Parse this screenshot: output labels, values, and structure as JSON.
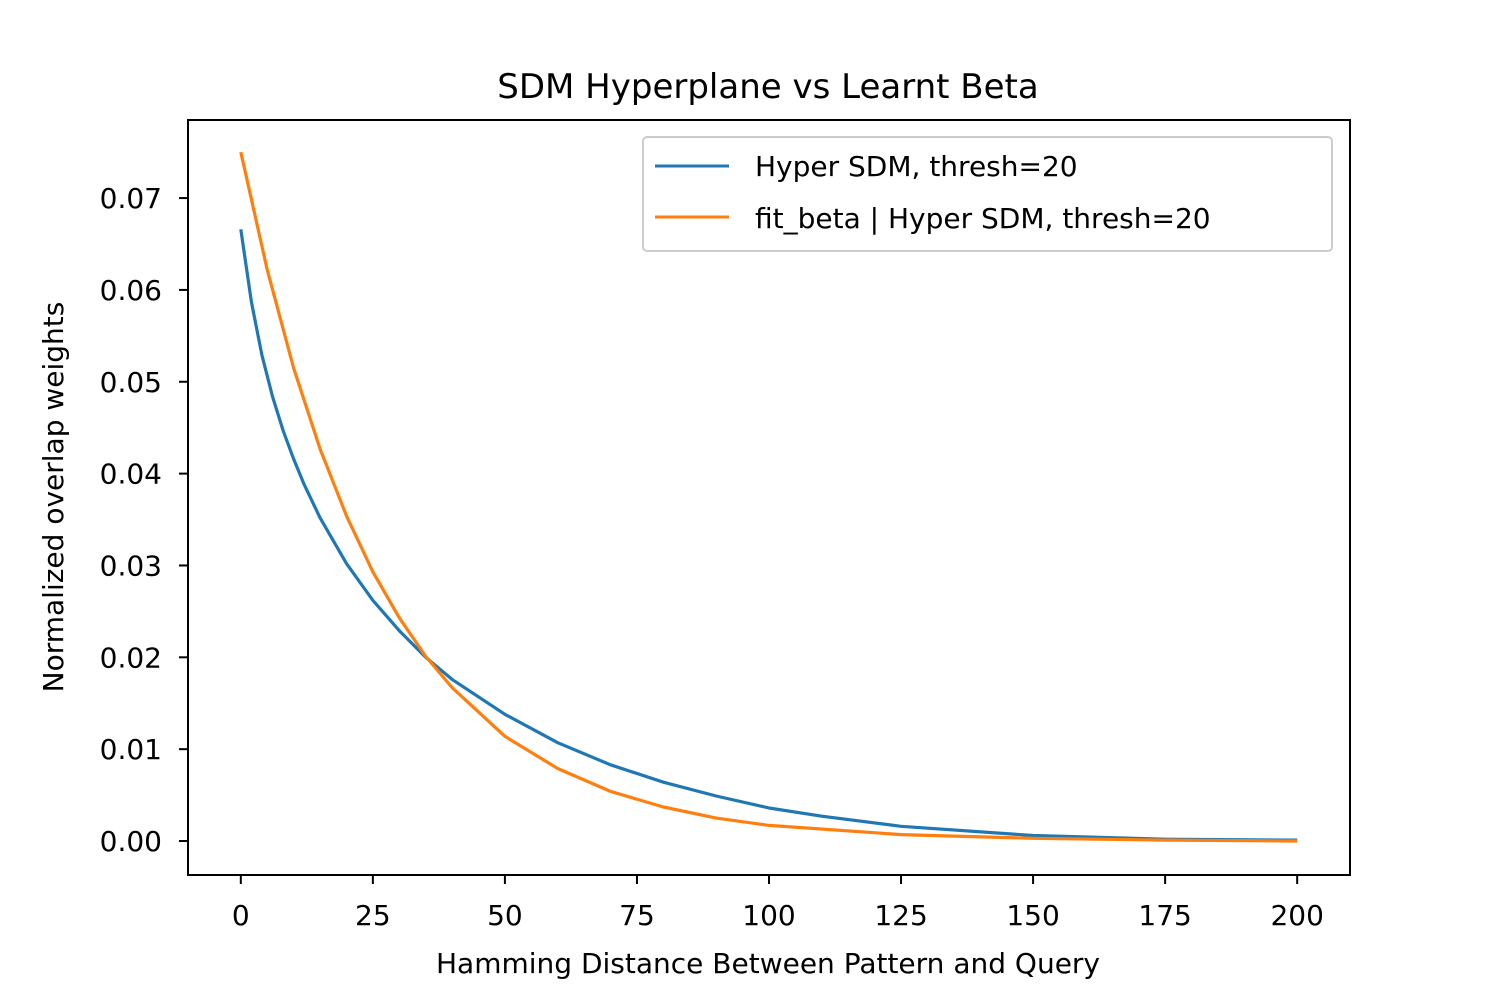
{
  "chart_data": {
    "type": "line",
    "title": "SDM Hyperplane vs Learnt Beta",
    "xlabel": "Hamming Distance Between Pattern and Query",
    "ylabel": "Normalized overlap weights",
    "xlim": [
      -10,
      210
    ],
    "ylim": [
      -0.0037,
      0.0785
    ],
    "xticks": [
      0,
      25,
      50,
      75,
      100,
      125,
      150,
      175,
      200
    ],
    "xtick_labels": [
      "0",
      "25",
      "50",
      "75",
      "100",
      "125",
      "150",
      "175",
      "200"
    ],
    "yticks": [
      0.0,
      0.01,
      0.02,
      0.03,
      0.04,
      0.05,
      0.06,
      0.07
    ],
    "ytick_labels": [
      "0.00",
      "0.01",
      "0.02",
      "0.03",
      "0.04",
      "0.05",
      "0.06",
      "0.07"
    ],
    "grid": false,
    "legend_position": "upper-right",
    "series": [
      {
        "name": "Hyper SDM, thresh=20",
        "color": "#1f77b4",
        "x": [
          0,
          2,
          4,
          6,
          8,
          10,
          12,
          15,
          20,
          25,
          30,
          35,
          40,
          50,
          60,
          70,
          80,
          90,
          100,
          110,
          125,
          150,
          175,
          200
        ],
        "y": [
          0.0666,
          0.0587,
          0.0529,
          0.0484,
          0.0447,
          0.0416,
          0.0388,
          0.0352,
          0.0302,
          0.0262,
          0.0229,
          0.02,
          0.0176,
          0.0138,
          0.0107,
          0.0083,
          0.0064,
          0.0049,
          0.0036,
          0.0027,
          0.0016,
          0.0006,
          0.0002,
          0.0001
        ]
      },
      {
        "name": "fit_beta | Hyper SDM, thresh=20",
        "color": "#ff7f0e",
        "x": [
          0,
          5,
          10,
          15,
          20,
          25,
          30,
          35,
          40,
          50,
          60,
          70,
          80,
          90,
          100,
          125,
          150,
          175,
          200
        ],
        "y": [
          0.075,
          0.0622,
          0.0515,
          0.0427,
          0.0354,
          0.0293,
          0.0243,
          0.0201,
          0.0167,
          0.0114,
          0.0079,
          0.0054,
          0.0037,
          0.0025,
          0.0017,
          0.0007,
          0.0003,
          0.0001,
          0.0
        ]
      }
    ]
  }
}
